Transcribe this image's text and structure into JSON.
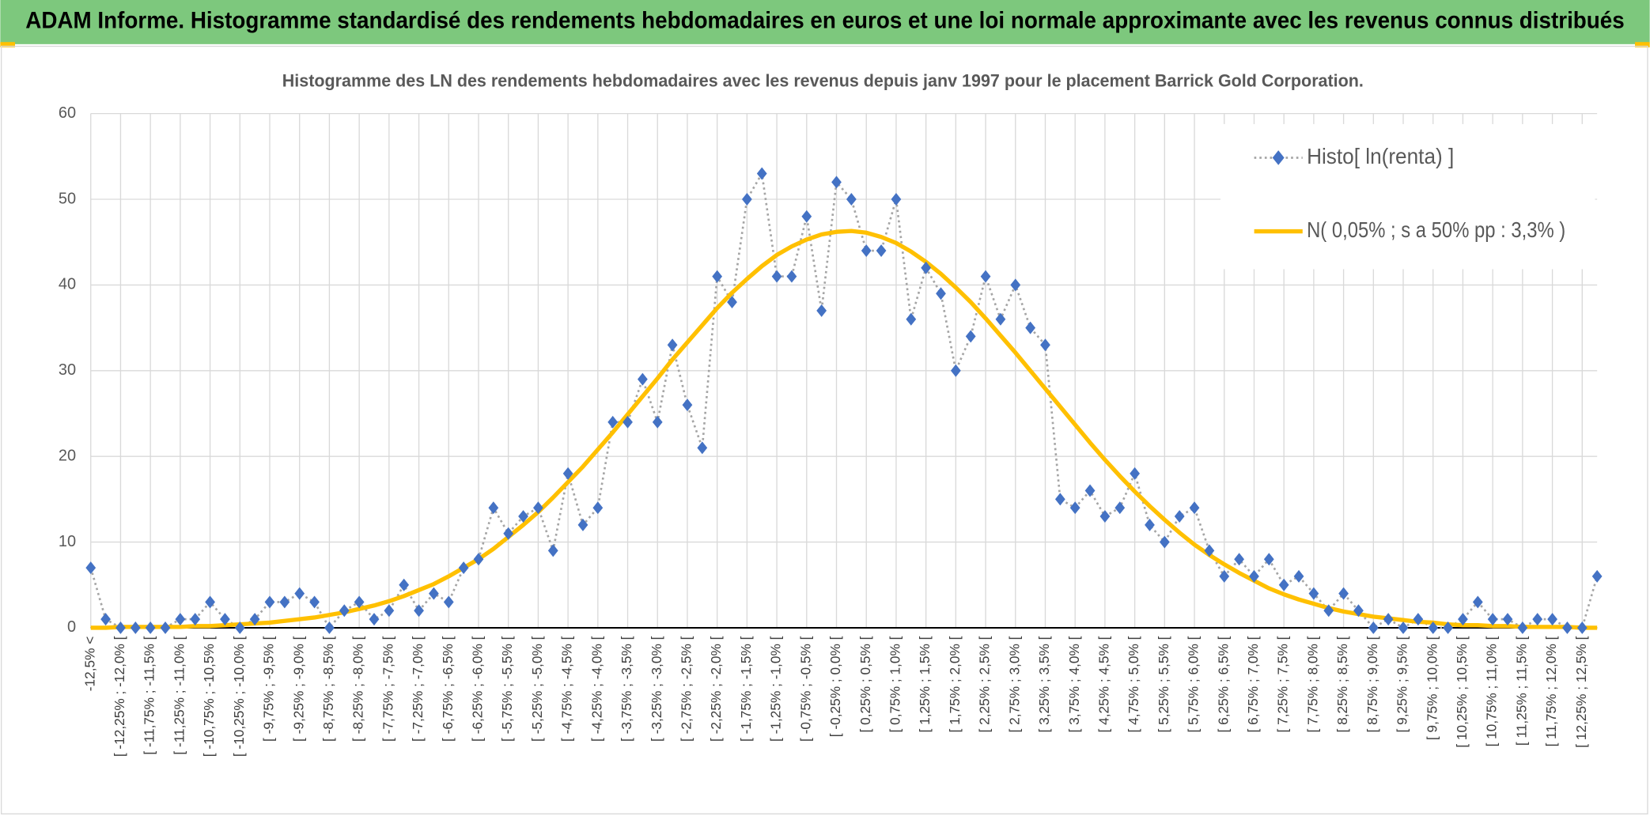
{
  "header": {
    "title": "ADAM Informe. Histogramme standardisé des rendements hebdomadaires en euros et une loi normale approximante avec les revenus connus distribués"
  },
  "chart_data": {
    "type": "line",
    "title": "Histogramme des LN des rendements hebdomadaires avec les revenus depuis janv 1997 pour le placement Barrick Gold Corporation.",
    "categories": [
      "-12,5% <",
      null,
      "[ -12,25% ; -12,0% [",
      null,
      "[ -11,75% ; -11,5% [",
      null,
      "[ -11,25% ; -11,0% [",
      null,
      "[ -10,75% ; -10,5% [",
      null,
      "[ -10,25% ; -10,0% [",
      null,
      "[ -9,75% ; -9,5% [",
      null,
      "[ -9,25% ; -9,0% [",
      null,
      "[ -8,75% ; -8,5% [",
      null,
      "[ -8,25% ; -8,0% [",
      null,
      "[ -7,75% ; -7,5% [",
      null,
      "[ -7,25% ; -7,0% [",
      null,
      "[ -6,75% ; -6,5% [",
      null,
      "[ -6,25% ; -6,0% [",
      null,
      "[ -5,75% ; -5,5% [",
      null,
      "[ -5,25% ; -5,0% [",
      null,
      "[ -4,75% ; -4,5% [",
      null,
      "[ -4,25% ; -4,0% [",
      null,
      "[ -3,75% ; -3,5% [",
      null,
      "[ -3,25% ; -3,0% [",
      null,
      "[ -2,75% ; -2,5% [",
      null,
      "[ -2,25% ; -2,0% [",
      null,
      "[ -1,75% ; -1,5% [",
      null,
      "[ -1,25% ; -1,0% [",
      null,
      "[ -0,75% ; -0,5% [",
      null,
      "[ -0,25% ; 0,0% [",
      null,
      "[ 0,25% ; 0,5% [",
      null,
      "[ 0,75% ; 1,0% [",
      null,
      "[ 1,25% ; 1,5% [",
      null,
      "[ 1,75% ; 2,0% [",
      null,
      "[ 2,25% ; 2,5% [",
      null,
      "[ 2,75% ; 3,0% [",
      null,
      "[ 3,25% ; 3,5% [",
      null,
      "[ 3,75% ; 4,0% [",
      null,
      "[ 4,25% ; 4,5% [",
      null,
      "[ 4,75% ; 5,0% [",
      null,
      "[ 5,25% ; 5,5% [",
      null,
      "[ 5,75% ; 6,0% [",
      null,
      "[ 6,25% ; 6,5% [",
      null,
      "[ 6,75% ; 7,0% [",
      null,
      "[ 7,25% ; 7,5% [",
      null,
      "[ 7,75% ; 8,0% [",
      null,
      "[ 8,25% ; 8,5% [",
      null,
      "[ 8,75% ; 9,0% [",
      null,
      "[ 9,25% ; 9,5% [",
      null,
      "[ 9,75% ; 10,0% [",
      null,
      "[ 10,25% ; 10,5% [",
      null,
      "[ 10,75% ; 11,0% [",
      null,
      "[ 11,25% ; 11,5% [",
      null,
      "[ 11,75% ; 12,0% [",
      null,
      "[ 12,25% ; 12,5% [",
      null
    ],
    "series": [
      {
        "name": "Histo[ ln(renta) ]",
        "color": "#4472c4",
        "line_color": "#a5a5a5",
        "values": [
          7,
          1,
          0,
          0,
          0,
          0,
          1,
          1,
          3,
          1,
          0,
          1,
          3,
          3,
          4,
          3,
          0,
          2,
          3,
          1,
          2,
          5,
          2,
          4,
          3,
          7,
          8,
          14,
          11,
          13,
          14,
          9,
          18,
          12,
          14,
          24,
          24,
          29,
          24,
          33,
          26,
          21,
          41,
          38,
          50,
          53,
          41,
          41,
          48,
          37,
          52,
          50,
          44,
          44,
          50,
          36,
          42,
          39,
          30,
          34,
          41,
          36,
          40,
          35,
          33,
          15,
          14,
          16,
          13,
          14,
          18,
          12,
          10,
          13,
          14,
          9,
          6,
          8,
          6,
          8,
          5,
          6,
          4,
          2,
          4,
          2,
          0,
          1,
          0,
          1,
          0,
          0,
          1,
          3,
          1,
          1,
          0,
          1,
          1,
          0,
          0,
          6
        ]
      },
      {
        "name": "N( 0,05% ; s a 50% pp : 3,3% )",
        "color": "#ffc000",
        "values": [
          0,
          0,
          0.1,
          0.1,
          0.1,
          0.1,
          0.1,
          0.2,
          0.2,
          0.3,
          0.4,
          0.5,
          0.6,
          0.8,
          1.0,
          1.2,
          1.5,
          1.8,
          2.2,
          2.6,
          3.1,
          3.7,
          4.4,
          5.1,
          6.0,
          7.0,
          8.0,
          9.2,
          10.6,
          12.0,
          13.5,
          15.2,
          17.0,
          18.8,
          20.8,
          22.8,
          24.9,
          27.0,
          29.1,
          31.3,
          33.3,
          35.3,
          37.3,
          39.1,
          40.7,
          42.2,
          43.5,
          44.5,
          45.3,
          45.9,
          46.2,
          46.3,
          46.1,
          45.6,
          44.9,
          43.9,
          42.7,
          41.3,
          39.7,
          38.0,
          36.1,
          34.1,
          32.1,
          30.0,
          27.9,
          25.8,
          23.7,
          21.6,
          19.6,
          17.7,
          15.9,
          14.2,
          12.6,
          11.1,
          9.7,
          8.5,
          7.4,
          6.4,
          5.5,
          4.6,
          3.9,
          3.3,
          2.8,
          2.3,
          1.9,
          1.6,
          1.3,
          1.1,
          0.9,
          0.7,
          0.6,
          0.4,
          0.3,
          0.3,
          0.2,
          0.2,
          0.1,
          0.1,
          0.1,
          0.1,
          0,
          0
        ]
      }
    ],
    "ylim": [
      0,
      60
    ],
    "yticks": [
      0,
      10,
      20,
      30,
      40,
      50,
      60
    ],
    "grid": true,
    "legend": "top-right"
  }
}
